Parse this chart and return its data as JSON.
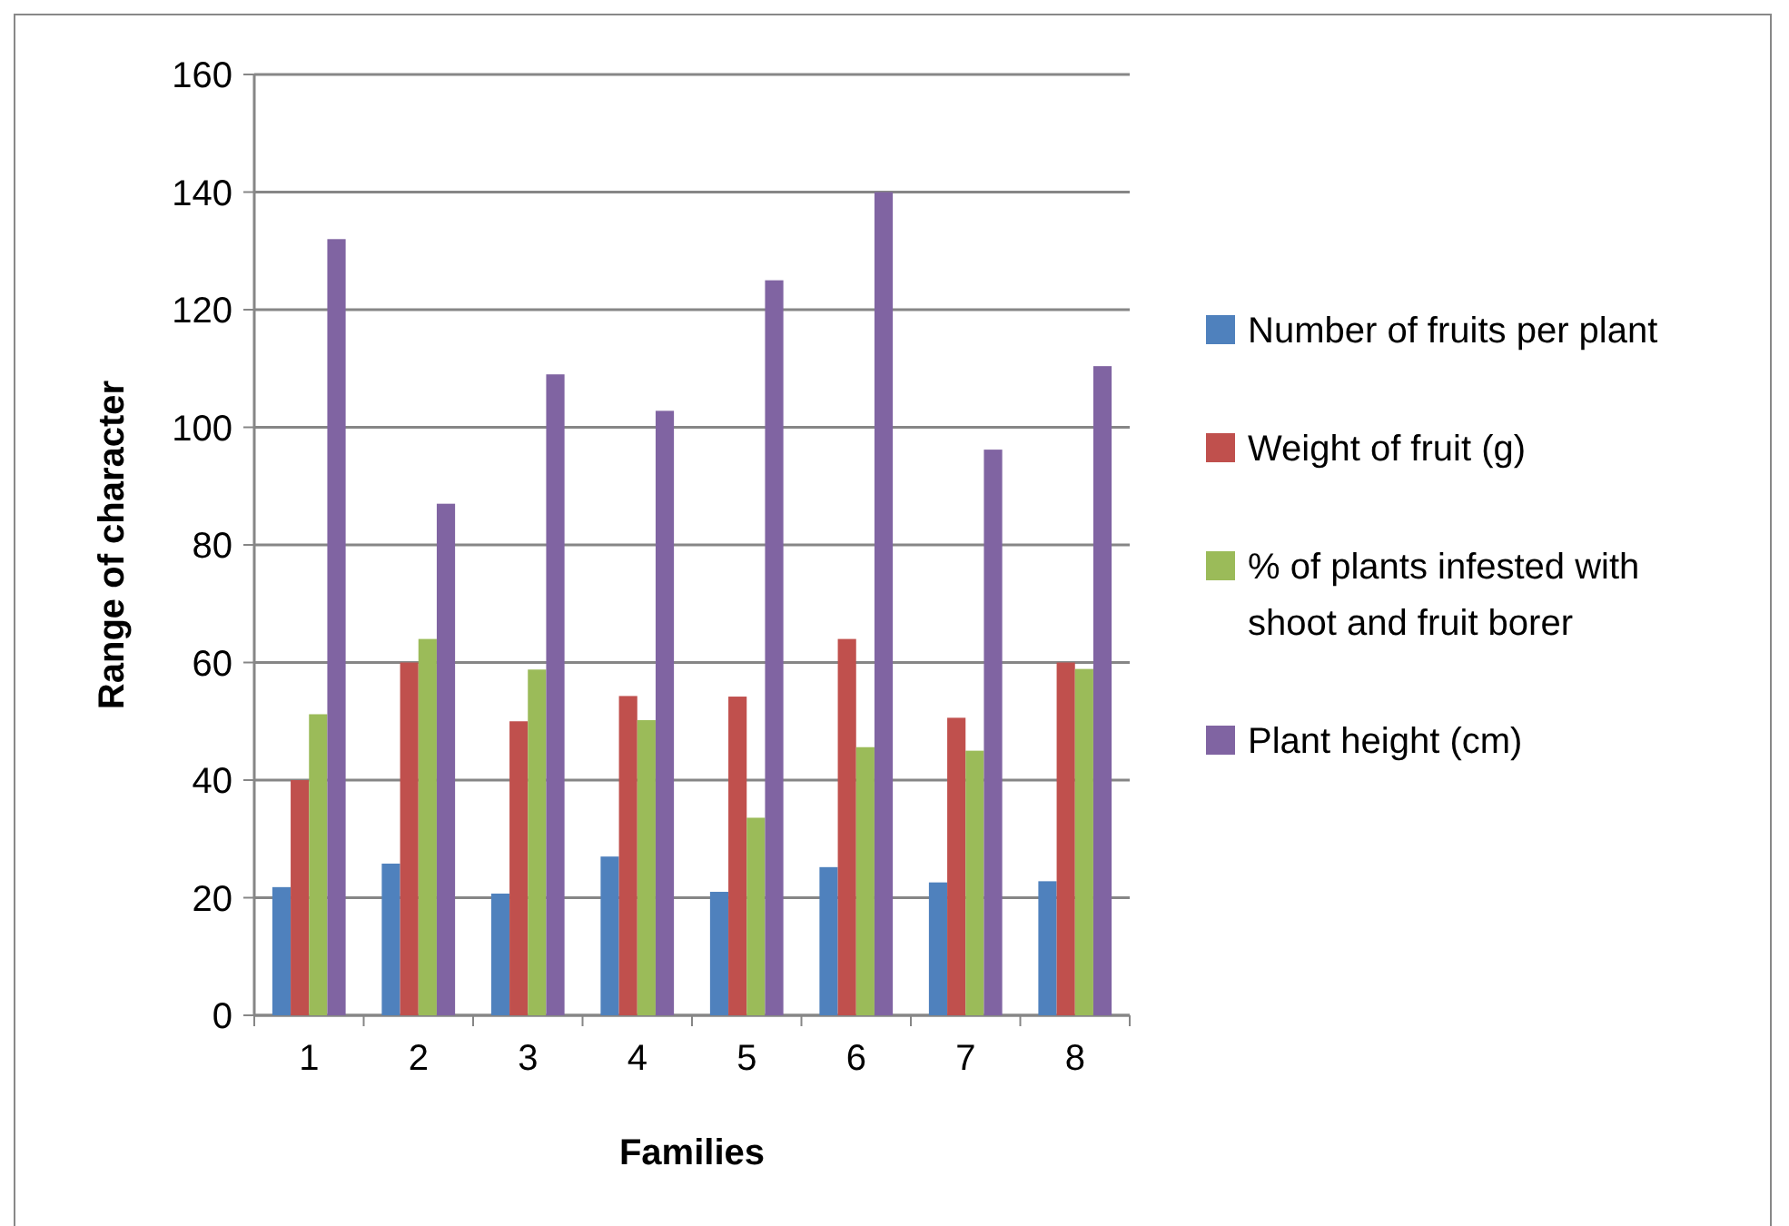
{
  "chart_data": {
    "type": "bar",
    "xlabel": "Families",
    "ylabel": "Range of character",
    "categories": [
      "1",
      "2",
      "3",
      "4",
      "5",
      "6",
      "7",
      "8"
    ],
    "series": [
      {
        "name": "Number of fruits per plant",
        "color": "#4f81bd",
        "values": [
          21.8,
          25.8,
          20.7,
          27,
          21,
          25.2,
          22.6,
          22.8
        ]
      },
      {
        "name": "Weight of fruit (g)",
        "color": "#c0504d",
        "values": [
          40,
          60,
          50,
          54.3,
          54.2,
          64,
          50.6,
          60
        ]
      },
      {
        "name": "% of plants infested with shoot and fruit borer",
        "color": "#9bbb59",
        "values": [
          51.2,
          64,
          58.8,
          50.2,
          33.6,
          45.6,
          45,
          58.9
        ]
      },
      {
        "name": "Plant height (cm)",
        "color": "#8064a2",
        "values": [
          132,
          87,
          109,
          102.8,
          125,
          140,
          96.2,
          110.4
        ]
      }
    ],
    "ylim": [
      0,
      160
    ],
    "yticks": [
      0,
      20,
      40,
      60,
      80,
      100,
      120,
      140,
      160
    ],
    "grid": "y",
    "legend": "right"
  }
}
